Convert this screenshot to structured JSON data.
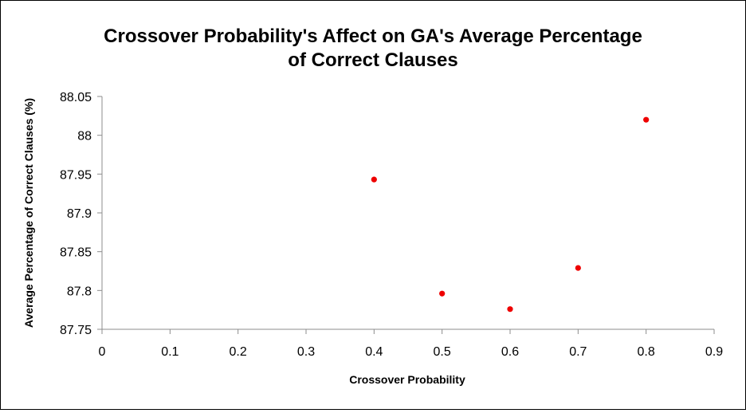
{
  "chart_data": {
    "type": "scatter",
    "title_lines": [
      "Crossover Probability's Affect on GA's Average Percentage",
      "of Correct Clauses"
    ],
    "xlabel": "Crossover Probability",
    "ylabel": "Average Percentage of Correct Clauses (%)",
    "xlim": [
      0,
      0.9
    ],
    "ylim": [
      87.75,
      88.05
    ],
    "x_ticks": [
      "0",
      "0.1",
      "0.2",
      "0.3",
      "0.4",
      "0.5",
      "0.6",
      "0.7",
      "0.8",
      "0.9"
    ],
    "y_ticks": [
      "87.75",
      "87.8",
      "87.85",
      "87.9",
      "87.95",
      "88",
      "88.05"
    ],
    "grid": false,
    "legend": "none",
    "marker_color": "#ee0000",
    "series": [
      {
        "x": [
          0.4,
          0.5,
          0.6,
          0.7,
          0.8
        ],
        "y": [
          87.943,
          87.796,
          87.776,
          87.829,
          88.02
        ]
      }
    ]
  }
}
